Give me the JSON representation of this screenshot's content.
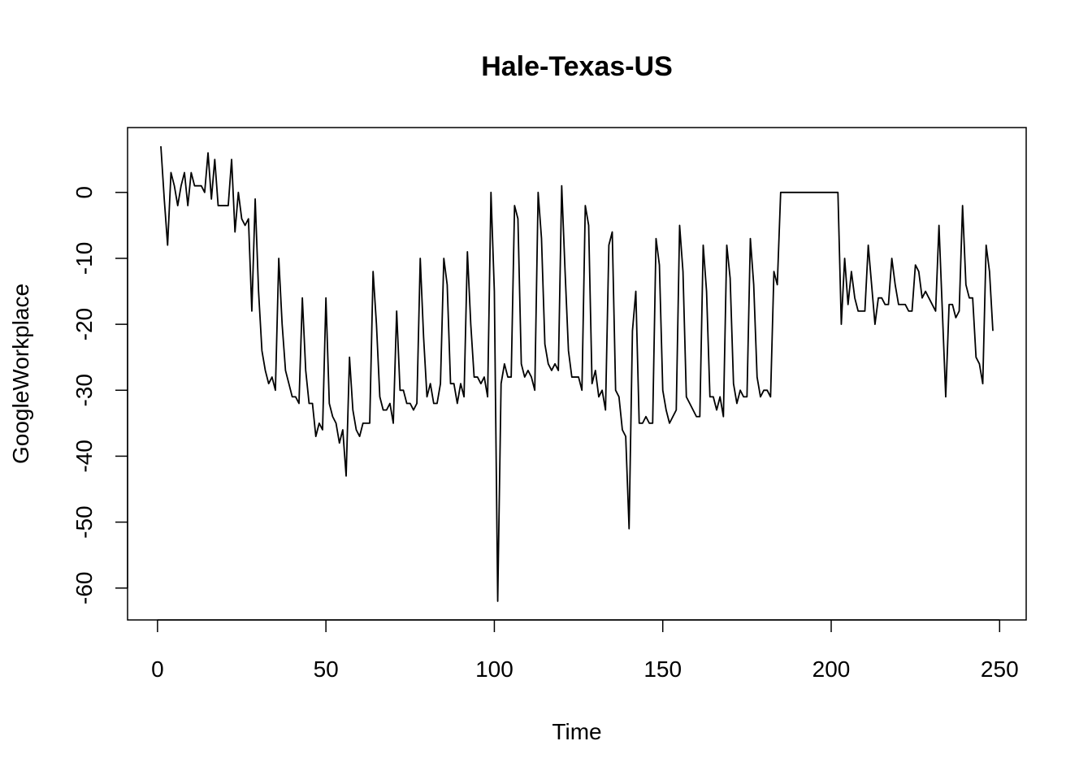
{
  "chart_data": {
    "type": "line",
    "title": "Hale-Texas-US",
    "xlabel": "Time",
    "ylabel": "GoogleWorkplace",
    "xlim": [
      1,
      248
    ],
    "ylim": [
      -62,
      7
    ],
    "x_ticks": [
      0,
      50,
      100,
      150,
      200,
      250
    ],
    "y_ticks": [
      -60,
      -50,
      -40,
      -30,
      -20,
      -10,
      0
    ],
    "grid": false,
    "legend": "none",
    "line_color": "#000000",
    "series": [
      {
        "x_start": 1,
        "values": [
          7,
          -1,
          -8,
          3,
          1,
          -2,
          1,
          3,
          -2,
          3,
          1,
          1,
          1,
          0,
          6,
          -1,
          5,
          -2,
          -2,
          -2,
          -2,
          5,
          -6,
          0,
          -4,
          -5,
          -4,
          -18,
          -1,
          -15,
          -24,
          -27,
          -29,
          -28,
          -30,
          -10,
          -20,
          -27,
          -29,
          -31,
          -31,
          -32,
          -16,
          -27,
          -32,
          -32,
          -37,
          -35,
          -36,
          -16,
          -32,
          -34,
          -35,
          -38,
          -36,
          -43,
          -25,
          -33,
          -36,
          -37,
          -35,
          -35,
          -35,
          -12,
          -20,
          -31,
          -33,
          -33,
          -32,
          -35,
          -18,
          -30,
          -30,
          -32,
          -32,
          -33,
          -32,
          -10,
          -22,
          -31,
          -29,
          -32,
          -32,
          -29,
          -10,
          -14,
          -29,
          -29,
          -32,
          -29,
          -31,
          -9,
          -20,
          -28,
          -28,
          -29,
          -28,
          -31,
          0,
          -15,
          -62,
          -29,
          -26,
          -28,
          -28,
          -2,
          -4,
          -26,
          -28,
          -27,
          -28,
          -30,
          0,
          -7,
          -23,
          -26,
          -27,
          -26,
          -27,
          1,
          -12,
          -24,
          -28,
          -28,
          -28,
          -30,
          -2,
          -5,
          -29,
          -27,
          -31,
          -30,
          -33,
          -8,
          -6,
          -30,
          -31,
          -36,
          -37,
          -51,
          -21,
          -15,
          -35,
          -35,
          -34,
          -35,
          -35,
          -7,
          -11,
          -30,
          -33,
          -35,
          -34,
          -33,
          -5,
          -12,
          -31,
          -32,
          -33,
          -34,
          -34,
          -8,
          -15,
          -31,
          -31,
          -33,
          -31,
          -34,
          -8,
          -13,
          -29,
          -32,
          -30,
          -31,
          -31,
          -7,
          -14,
          -28,
          -31,
          -30,
          -30,
          -31,
          -12,
          -14,
          0,
          0,
          0,
          0,
          0,
          0,
          0,
          0,
          0,
          0,
          0,
          0,
          0,
          0,
          0,
          0,
          0,
          0,
          -20,
          -10,
          -17,
          -12,
          -16,
          -18,
          -18,
          -18,
          -8,
          -14,
          -20,
          -16,
          -16,
          -17,
          -17,
          -10,
          -14,
          -17,
          -17,
          -17,
          -18,
          -18,
          -11,
          -12,
          -16,
          -15,
          -16,
          -17,
          -18,
          -5,
          -18,
          -31,
          -17,
          -17,
          -19,
          -18,
          -2,
          -14,
          -16,
          -16,
          -25,
          -26,
          -29,
          -8,
          -12,
          -21
        ]
      }
    ]
  }
}
